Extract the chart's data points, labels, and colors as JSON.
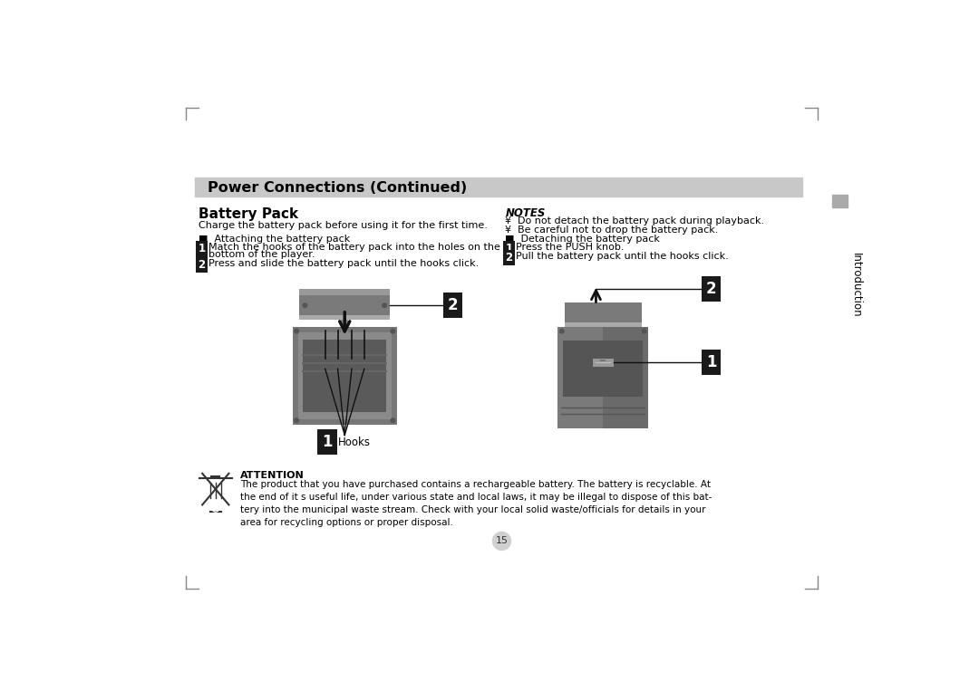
{
  "bg_color": "#ffffff",
  "header_bg": "#c8c8c8",
  "header_text": "Power Connections (Continued)",
  "section_title_left": "Battery Pack",
  "charge_text": "Charge the battery pack before using it for the first time.",
  "attach_heading": "■  Attaching the battery pack",
  "attach_step1": "Match the hooks of the battery pack into the holes on the\n      bottom of the player.",
  "attach_step2": "Press and slide the battery pack until the hooks click.",
  "notes_heading": "NOTES",
  "notes_line1": "¥  Do not detach the battery pack during playback.",
  "notes_line2": "¥  Be careful not to drop the battery pack.",
  "detach_heading": "■  Detaching the battery pack",
  "detach_step1": "Press the PUSH knob.",
  "detach_step2": "Pull the battery pack until the hooks click.",
  "hooks_label": "Hooks",
  "attention_heading": "ATTENTION",
  "attention_text": "The product that you have purchased contains a rechargeable battery. The battery is recyclable. At\nthe end of it s useful life, under various state and local laws, it may be illegal to dispose of this bat-\ntery into the municipal waste stream. Check with your local solid waste/officials for details in your\narea for recycling options or proper disposal.",
  "page_number": "15",
  "intro_sidebar": "Introduction",
  "body_font_size": 8.0,
  "step_font_size": 8.5,
  "header_font_size": 11.5,
  "title_font_size": 11.0,
  "notes_font_size": 8.5
}
